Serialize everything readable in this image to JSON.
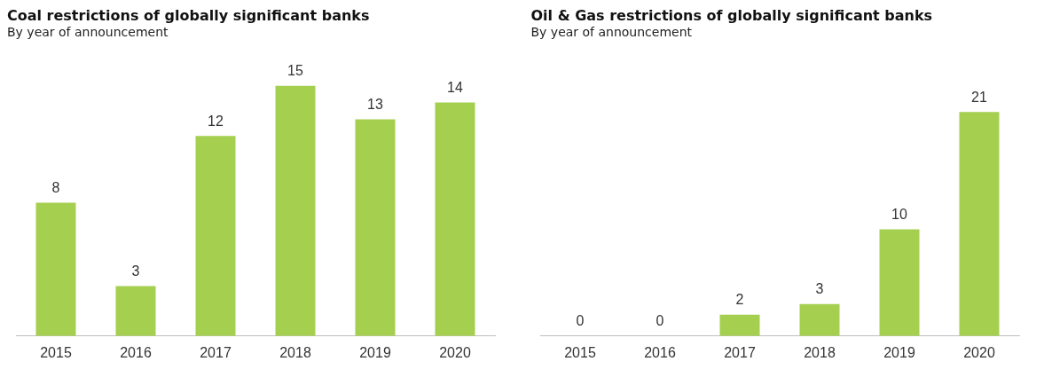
{
  "chart_data": [
    {
      "type": "bar",
      "title": "Coal restrictions of globally significant banks",
      "subtitle": "By year of announcement",
      "categories": [
        "2015",
        "2016",
        "2017",
        "2018",
        "2019",
        "2020"
      ],
      "values": [
        8,
        3,
        12,
        15,
        13,
        14
      ],
      "color": "#a5cf4f",
      "data_labels": true,
      "tick_labels": "x"
    },
    {
      "type": "bar",
      "title": "Oil & Gas restrictions of globally significant banks",
      "subtitle": "By year of announcement",
      "categories": [
        "2015",
        "2016",
        "2017",
        "2018",
        "2019",
        "2020"
      ],
      "values": [
        0,
        0,
        2,
        3,
        10,
        21
      ],
      "color": "#a5cf4f",
      "data_labels": true,
      "tick_labels": "x"
    }
  ]
}
